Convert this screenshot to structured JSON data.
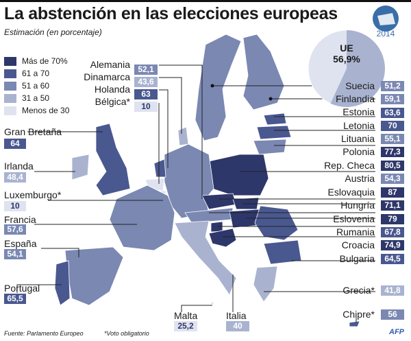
{
  "title": "La abstención en las elecciones europeas",
  "subtitle": "Estimación (en porcentaje)",
  "logo": {
    "year": "2014"
  },
  "colors": {
    "c1": "#2e376a",
    "c2": "#4a5890",
    "c3": "#7a88b2",
    "c4": "#a9b3d0",
    "c5": "#dfe3ef"
  },
  "legend": [
    {
      "label": "Más de 70%",
      "color": "#2e376a"
    },
    {
      "label": "61 a 70",
      "color": "#4a5890"
    },
    {
      "label": "51 a 60",
      "color": "#7a88b2"
    },
    {
      "label": "31 a 50",
      "color": "#a9b3d0"
    },
    {
      "label": "Menos de 30",
      "color": "#dfe3ef"
    }
  ],
  "eu": {
    "label": "UE",
    "value": "56,9%",
    "percent": 56.9
  },
  "countries": {
    "alemania": {
      "name": "Alemania",
      "value": "52,1"
    },
    "dinamarca": {
      "name": "Dinamarca",
      "value": "43,6"
    },
    "holanda": {
      "name": "Holanda",
      "value": "63"
    },
    "belgica": {
      "name": "Bélgica*",
      "value": "10"
    },
    "granbretana": {
      "name": "Gran Bretaña",
      "value": "64"
    },
    "irlanda": {
      "name": "Irlanda",
      "value": "48,4"
    },
    "luxemburgo": {
      "name": "Luxemburgo*",
      "value": "10"
    },
    "francia": {
      "name": "Francia",
      "value": "57,6"
    },
    "espana": {
      "name": "España",
      "value": "54,1"
    },
    "portugal": {
      "name": "Portugal",
      "value": "65,5"
    },
    "malta": {
      "name": "Malta",
      "value": "25,2"
    },
    "italia": {
      "name": "Italia",
      "value": "40"
    },
    "suecia": {
      "name": "Suecia",
      "value": "51,2"
    },
    "finlandia": {
      "name": "Finlandia",
      "value": "59,1"
    },
    "estonia": {
      "name": "Estonia",
      "value": "63,6"
    },
    "letonia": {
      "name": "Letonia",
      "value": "70"
    },
    "lituania": {
      "name": "Lituania",
      "value": "55,1"
    },
    "polonia": {
      "name": "Polonia",
      "value": "77,3"
    },
    "repcheca": {
      "name": "Rep. Checa",
      "value": "80,5"
    },
    "austria": {
      "name": "Austria",
      "value": "54,3"
    },
    "eslovaquia": {
      "name": "Eslovaquia",
      "value": "87"
    },
    "hungria": {
      "name": "Hungría",
      "value": "71,1"
    },
    "eslovenia": {
      "name": "Eslovenia",
      "value": "79"
    },
    "rumania": {
      "name": "Rumania",
      "value": "67,8"
    },
    "croacia": {
      "name": "Croacia",
      "value": "74,9"
    },
    "bulgaria": {
      "name": "Bulgaria",
      "value": "64,5"
    },
    "grecia": {
      "name": "Grecia*",
      "value": "41,8"
    },
    "chipre": {
      "name": "Chipre*",
      "value": "56"
    }
  },
  "footer": {
    "source": "Fuente: Parlamento Europeo",
    "note": "*Voto obligatorio",
    "credit": "AFP"
  }
}
